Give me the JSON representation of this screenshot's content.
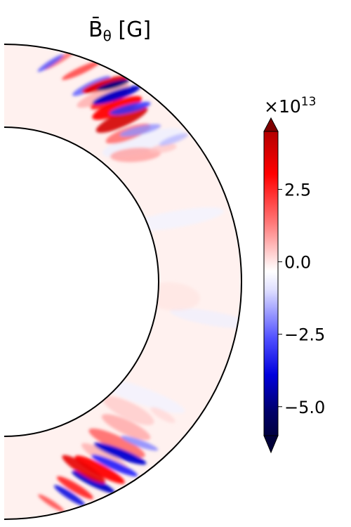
{
  "chart_data": {
    "type": "heatmap",
    "title_symbol": "B̄",
    "title_subscript": "θ",
    "title_unit": " [G]",
    "colorbar": {
      "multiplier_base": "×10",
      "multiplier_exponent": "13",
      "colormap": "seismic",
      "vmin": -6.0,
      "vmax": 4.5,
      "extend": "both",
      "ticks": [
        {
          "value": 2.5,
          "label": "2.5"
        },
        {
          "value": 0.0,
          "label": "0.0"
        },
        {
          "value": -2.5,
          "label": "−2.5"
        },
        {
          "value": -5.0,
          "label": "−5.0"
        }
      ]
    },
    "domain": {
      "shape": "meridional half-annulus (spherical shell)",
      "inner_radius_fraction": 0.66,
      "colatitude_range_deg": [
        0,
        180
      ]
    },
    "features": [
      {
        "region": "northern mid-latitudes near outer boundary",
        "sign": "mixed",
        "peak_value": 4.0
      },
      {
        "region": "northern mid-latitudes near outer boundary",
        "sign": "negative",
        "peak_value": -5.5
      },
      {
        "region": "southern mid-latitudes near outer boundary",
        "sign": "mixed",
        "peak_value": 3.5
      },
      {
        "region": "southern mid-latitudes near outer boundary",
        "sign": "negative",
        "peak_value": -4.5
      },
      {
        "region": "bulk of shell",
        "sign": "weak positive",
        "peak_value": 0.2
      }
    ]
  }
}
